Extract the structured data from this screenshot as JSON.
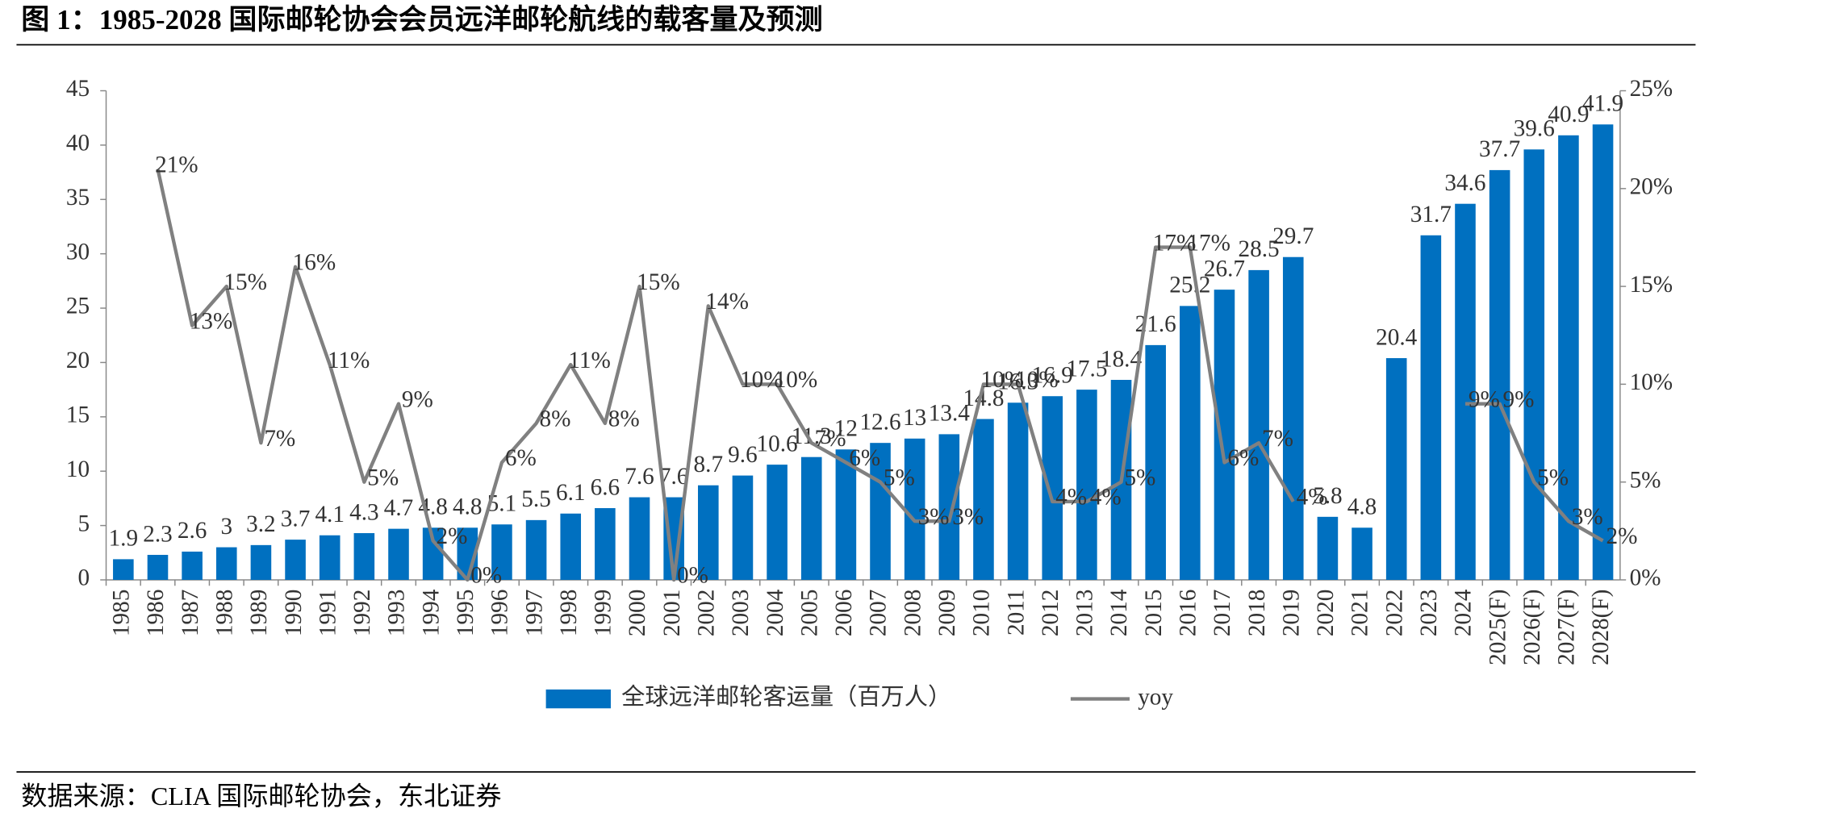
{
  "header": {
    "title": "图 1：1985-2028 国际邮轮协会会员远洋邮轮航线的载客量及预测"
  },
  "chart_data": {
    "type": "bar-line",
    "categories": [
      "1985",
      "1986",
      "1987",
      "1988",
      "1989",
      "1990",
      "1991",
      "1992",
      "1993",
      "1994",
      "1995",
      "1996",
      "1997",
      "1998",
      "1999",
      "2000",
      "2001",
      "2002",
      "2003",
      "2004",
      "2005",
      "2006",
      "2007",
      "2008",
      "2009",
      "2010",
      "2011",
      "2012",
      "2013",
      "2014",
      "2015",
      "2016",
      "2017",
      "2018",
      "2019",
      "2020",
      "2021",
      "2022",
      "2023",
      "2024",
      "2025(F)",
      "2026(F)",
      "2027(F)",
      "2028(F)"
    ],
    "series": [
      {
        "name": "全球远洋邮轮客运量（百万人）",
        "type": "bar",
        "color": "#0070c0",
        "values": [
          1.9,
          2.3,
          2.6,
          3,
          3.2,
          3.7,
          4.1,
          4.3,
          4.7,
          4.8,
          4.8,
          5.1,
          5.5,
          6.1,
          6.6,
          7.6,
          7.6,
          8.7,
          9.6,
          10.6,
          11.3,
          12,
          12.6,
          13,
          13.4,
          14.8,
          16.3,
          16.9,
          17.5,
          18.4,
          21.6,
          25.2,
          26.7,
          28.5,
          29.7,
          5.8,
          4.8,
          20.4,
          31.7,
          34.6,
          37.7,
          39.6,
          40.9,
          41.9
        ]
      },
      {
        "name": "yoy",
        "type": "line",
        "axis": "y2",
        "color": "#808080",
        "values": [
          null,
          21,
          13,
          15,
          7,
          16,
          11,
          5,
          9,
          2,
          0,
          6,
          8,
          11,
          8,
          15,
          0,
          14,
          10,
          10,
          7,
          6,
          5,
          3,
          3,
          10,
          10,
          4,
          4,
          5,
          17,
          17,
          6,
          7,
          4,
          null,
          null,
          null,
          null,
          9,
          9,
          5,
          3,
          2
        ],
        "value_labels": [
          null,
          "21%",
          "13%",
          "15%",
          "7%",
          "16%",
          "11%",
          "5%",
          "9%",
          "2%",
          "0%",
          "6%",
          "8%",
          "11%",
          "8%",
          "15%",
          "0%",
          "14%",
          "10%",
          "10%",
          "7%",
          "6%",
          "5%",
          "3%",
          "3%",
          "10%",
          "10%",
          "4%",
          "4%",
          "5%",
          "17%",
          "17%",
          "6%",
          "7%",
          "4%",
          null,
          null,
          null,
          null,
          "9%",
          "9%",
          "5%",
          "3%",
          "2%"
        ]
      }
    ],
    "ylim": [
      0,
      45
    ],
    "yticks": [
      0,
      5,
      10,
      15,
      20,
      25,
      30,
      35,
      40,
      45
    ],
    "y2lim": [
      0,
      25
    ],
    "y2ticks": [
      {
        "value": 0,
        "label": "0%"
      },
      {
        "value": 5,
        "label": "5%"
      },
      {
        "value": 10,
        "label": "10%"
      },
      {
        "value": 15,
        "label": "15%"
      },
      {
        "value": 20,
        "label": "20%"
      },
      {
        "value": 25,
        "label": "25%"
      }
    ],
    "grid": false
  },
  "footer": {
    "source": "数据来源：CLIA 国际邮轮协会，东北证券"
  }
}
